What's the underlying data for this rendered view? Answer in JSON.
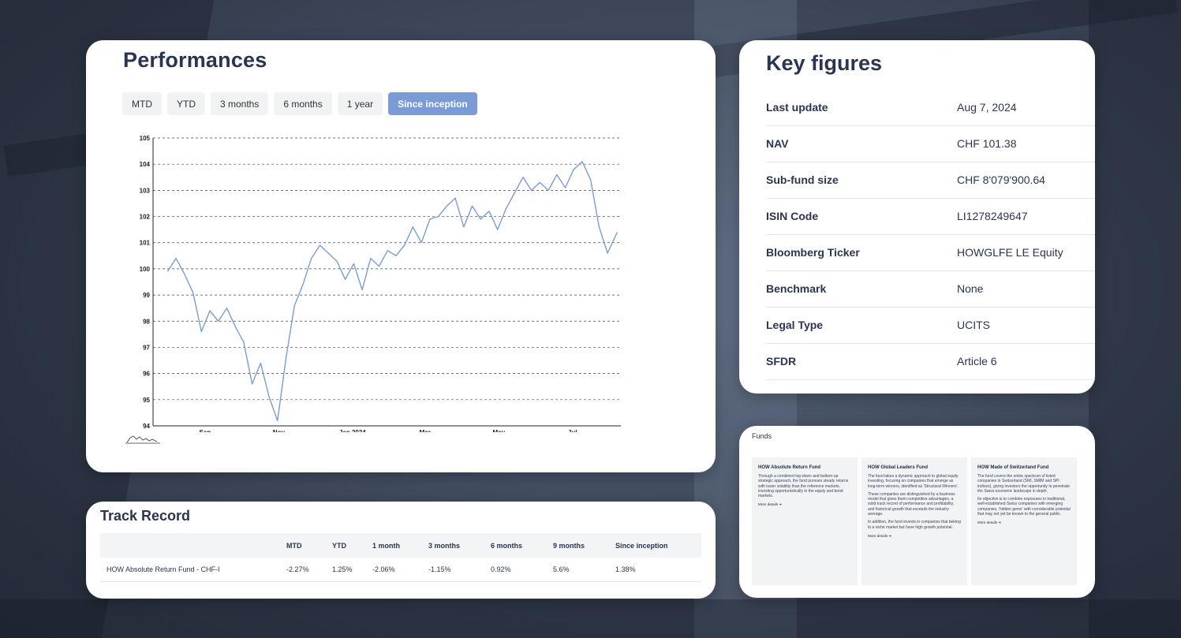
{
  "performance": {
    "title": "Performances",
    "tabs": [
      "MTD",
      "YTD",
      "3 months",
      "6 months",
      "1 year",
      "Since inception"
    ],
    "active_tab": "Since inception"
  },
  "chart_data": {
    "type": "line",
    "x_ticks": [
      "Sep",
      "Nov",
      "Jan 2024",
      "Mar",
      "May",
      "Jul"
    ],
    "y_ticks": [
      94,
      95,
      96,
      97,
      98,
      99,
      100,
      101,
      102,
      103,
      104,
      105
    ],
    "ylim": [
      94,
      105
    ],
    "grid": "horizontal dashed",
    "color": "#7a9bd6",
    "x": [
      "2023-08-01",
      "2023-08-08",
      "2023-08-15",
      "2023-08-22",
      "2023-08-29",
      "2023-09-05",
      "2023-09-12",
      "2023-09-19",
      "2023-09-26",
      "2023-10-03",
      "2023-10-10",
      "2023-10-17",
      "2023-10-24",
      "2023-10-31",
      "2023-11-07",
      "2023-11-14",
      "2023-11-21",
      "2023-11-28",
      "2023-12-05",
      "2023-12-12",
      "2023-12-19",
      "2023-12-26",
      "2024-01-02",
      "2024-01-09",
      "2024-01-16",
      "2024-01-23",
      "2024-01-30",
      "2024-02-06",
      "2024-02-13",
      "2024-02-20",
      "2024-02-27",
      "2024-03-05",
      "2024-03-12",
      "2024-03-19",
      "2024-03-26",
      "2024-04-02",
      "2024-04-09",
      "2024-04-16",
      "2024-04-23",
      "2024-04-30",
      "2024-05-07",
      "2024-05-14",
      "2024-05-21",
      "2024-05-28",
      "2024-06-04",
      "2024-06-11",
      "2024-06-18",
      "2024-06-25",
      "2024-07-02",
      "2024-07-09",
      "2024-07-16",
      "2024-07-23",
      "2024-07-30",
      "2024-08-07"
    ],
    "values": [
      99.9,
      100.4,
      99.8,
      99.1,
      97.6,
      98.4,
      98.0,
      98.5,
      97.8,
      97.2,
      95.6,
      96.4,
      95.1,
      94.2,
      96.6,
      98.6,
      99.4,
      100.4,
      100.9,
      100.6,
      100.3,
      99.6,
      100.2,
      99.2,
      100.4,
      100.1,
      100.7,
      100.5,
      100.9,
      101.6,
      101.0,
      101.9,
      102.0,
      102.4,
      102.7,
      101.6,
      102.4,
      101.9,
      102.2,
      101.5,
      102.3,
      102.9,
      103.5,
      103.0,
      103.3,
      103.0,
      103.6,
      103.1,
      103.8,
      104.1,
      103.4,
      101.6,
      100.6,
      101.4
    ]
  },
  "key_figures": {
    "title": "Key figures",
    "rows": [
      {
        "label": "Last update",
        "value": "Aug 7, 2024"
      },
      {
        "label": "NAV",
        "value": "CHF 101.38"
      },
      {
        "label": "Sub-fund size",
        "value": "CHF 8'079'900.64"
      },
      {
        "label": "ISIN Code",
        "value": "LI1278249647"
      },
      {
        "label": "Bloomberg Ticker",
        "value": "HOWGLFE LE Equity"
      },
      {
        "label": "Benchmark",
        "value": "None"
      },
      {
        "label": "Legal Type",
        "value": "UCITS"
      },
      {
        "label": "SFDR",
        "value": "Article 6"
      }
    ]
  },
  "track_record": {
    "title": "Track Record",
    "headers": [
      "",
      "MTD",
      "YTD",
      "1 month",
      "3 months",
      "6 months",
      "9 months",
      "Since inception"
    ],
    "rows": [
      [
        "HOW Absolute Return Fund - CHF-I",
        "-2.27%",
        "1.25%",
        "-2.06%",
        "-1.15%",
        "0.92%",
        "5.6%",
        "1.38%"
      ]
    ]
  },
  "funds": {
    "label": "Funds",
    "items": [
      {
        "name": "HOW Absolute Return Fund",
        "paragraphs": [
          "Through a combined top-down and bottom-up strategic approach, the fund pursues steady returns with lower volatility than the reference markets, investing opportunistically in the equity and bond markets."
        ],
        "more": "More details ➜"
      },
      {
        "name": "HOW Global Leaders Fund",
        "paragraphs": [
          "The fund takes a dynamic approach to global equity investing, focusing on companies that emerge as long-term winners, identified as 'Structural Winners'.",
          "These companies are distinguished by a business model that gives them competitive advantages, a solid track record of performance and profitability, and historical growth that exceeds the industry average.",
          "In addition, the fund invests in companies that belong to a niche market but have high growth potential."
        ],
        "more": "More details ➜"
      },
      {
        "name": "HOW Made of Switzerland Fund",
        "paragraphs": [
          "The fund covers the entire spectrum of listed companies in Switzerland (SMI, SMIM and SPI indices), giving investors the opportunity to penetrate the Swiss economic landscape in depth.",
          "Its objective is to combine exposures in traditional, well-established Swiss companies with emerging companies, 'hidden gems' with considerable potential that may not yet be known to the general public."
        ],
        "more": "More details ➜"
      }
    ]
  }
}
